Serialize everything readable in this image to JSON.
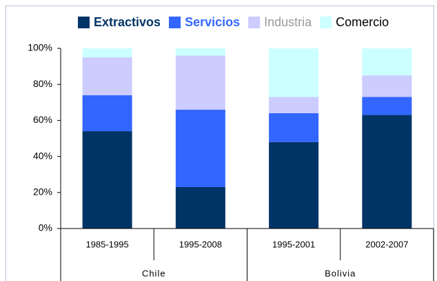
{
  "chart_data": {
    "type": "stacked_bar_100",
    "categories": [
      "1985-1995",
      "1995-2008",
      "1995-2001",
      "2002-2007"
    ],
    "groups": [
      {
        "name": "Chile",
        "size": 2
      },
      {
        "name": "Bolivia",
        "size": 2
      }
    ],
    "series": [
      {
        "name": "Extractivos",
        "color": "#003366",
        "label_color": "#003366",
        "label_bold": true,
        "values": [
          54,
          23,
          48,
          63
        ]
      },
      {
        "name": "Servicios",
        "color": "#3366ff",
        "label_color": "#3366ff",
        "label_bold": true,
        "values": [
          20,
          43,
          16,
          10
        ]
      },
      {
        "name": "Industria",
        "color": "#ccccff",
        "label_color": "#999999",
        "label_bold": false,
        "values": [
          21,
          30,
          9,
          12
        ]
      },
      {
        "name": "Comercio",
        "color": "#ccffff",
        "label_color": "#000000",
        "label_bold": false,
        "values": [
          5,
          4,
          27,
          15
        ]
      }
    ],
    "ylim": [
      0,
      100
    ],
    "yticks": [
      {
        "value": 0,
        "label": "0%"
      },
      {
        "value": 20,
        "label": "20%"
      },
      {
        "value": 40,
        "label": "40%"
      },
      {
        "value": 60,
        "label": "60%"
      },
      {
        "value": 80,
        "label": "80%"
      },
      {
        "value": 100,
        "label": "100%"
      }
    ],
    "legend": "top"
  }
}
